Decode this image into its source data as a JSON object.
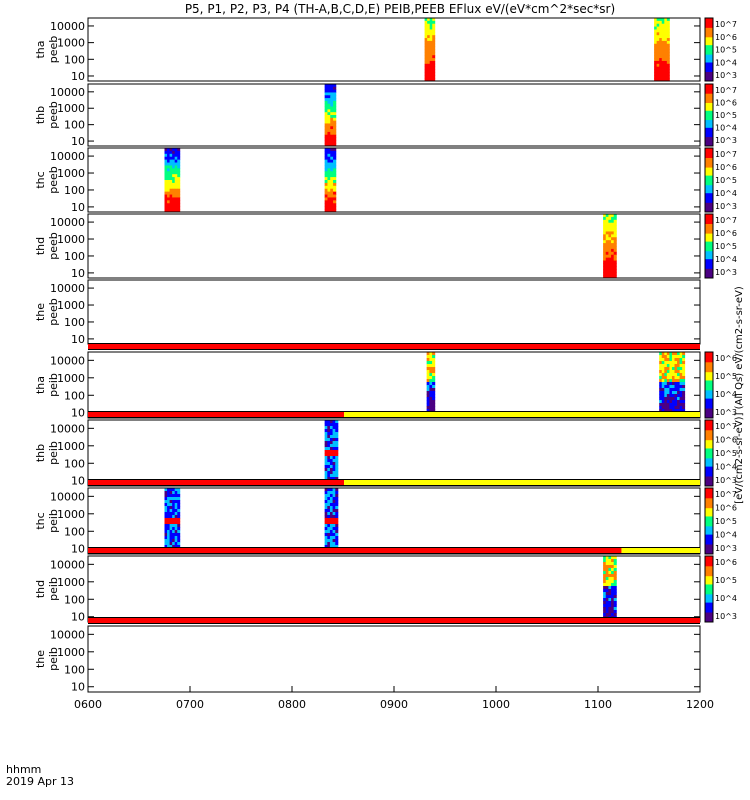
{
  "chart_data": {
    "type": "heatmap",
    "title": "P5, P1, P2, P3, P4 (TH-A,B,C,D,E) PEIB,PEEB EFlux eV/(eV*cm^2*sec*sr)",
    "x_ticks": [
      "0600",
      "0700",
      "0800",
      "0900",
      "1000",
      "1100",
      "1200"
    ],
    "x_range": [
      "0600",
      "1200"
    ],
    "x_label_line1": "hhmm",
    "x_label_line2": "2019 Apr 13",
    "y_ticks": [
      "10",
      "100",
      "1000",
      "10000"
    ],
    "y_scale": "log",
    "y_range": [
      5,
      30000
    ],
    "colorbar_label": "[eV/(cm2-s-sr-eV)] (All Qs) eV/(cm2-s-sr-eV)",
    "colormap": [
      "#4b0082",
      "#0000ff",
      "#00bfff",
      "#00ff80",
      "#ffff00",
      "#ff8000",
      "#ff0000"
    ],
    "panels": [
      {
        "label_line1": "tha",
        "label_line2": "peeb",
        "colorbar_ticks": [
          "10^3",
          "10^4",
          "10^5",
          "10^6",
          "10^7"
        ],
        "blocks": [
          {
            "start": "0930",
            "end": "0940",
            "profile": "electron"
          },
          {
            "start": "1155",
            "end": "1170",
            "profile": "electron"
          }
        ]
      },
      {
        "label_line1": "thb",
        "label_line2": "peeb",
        "colorbar_ticks": [
          "10^3",
          "10^4",
          "10^5",
          "10^6",
          "10^7"
        ],
        "blocks": [
          {
            "start": "0832",
            "end": "0843",
            "profile": "electron_low"
          }
        ]
      },
      {
        "label_line1": "thc",
        "label_line2": "peeb",
        "colorbar_ticks": [
          "10^3",
          "10^4",
          "10^5",
          "10^6",
          "10^7"
        ],
        "blocks": [
          {
            "start": "0675",
            "end": "0690",
            "profile": "electron_low"
          },
          {
            "start": "0832",
            "end": "0843",
            "profile": "electron_low"
          }
        ]
      },
      {
        "label_line1": "thd",
        "label_line2": "peeb",
        "colorbar_ticks": [
          "10^3",
          "10^4",
          "10^5",
          "10^6",
          "10^7"
        ],
        "blocks": [
          {
            "start": "1105",
            "end": "1118",
            "profile": "electron"
          }
        ]
      },
      {
        "label_line1": "the",
        "label_line2": "peeb",
        "colorbar_ticks": [],
        "blocks": []
      },
      {
        "label_line1": "tha",
        "label_line2": "peib",
        "colorbar_ticks": [
          "10^3",
          "10^4",
          "10^5",
          "10^6"
        ],
        "blocks": [
          {
            "start": "0932",
            "end": "0940",
            "profile": "ion"
          },
          {
            "start": "1160",
            "end": "1185",
            "profile": "ion"
          }
        ],
        "status_bar": [
          {
            "start": "0600",
            "end": "1200",
            "color": "#ff0000"
          }
        ]
      },
      {
        "label_line1": "thb",
        "label_line2": "peib",
        "colorbar_ticks": [
          "10^3",
          "10^4",
          "10^5",
          "10^6",
          "10^7"
        ],
        "blocks": [
          {
            "start": "0832",
            "end": "0845",
            "profile": "ion_band"
          }
        ],
        "status_bar": [
          {
            "start": "0600",
            "end": "0851",
            "color": "#ff0000"
          },
          {
            "start": "0851",
            "end": "1200",
            "color": "#ffff00"
          }
        ]
      },
      {
        "label_line1": "thc",
        "label_line2": "peib",
        "colorbar_ticks": [
          "10^3",
          "10^4",
          "10^5",
          "10^6",
          "10^7"
        ],
        "blocks": [
          {
            "start": "0675",
            "end": "0690",
            "profile": "ion_band"
          },
          {
            "start": "0832",
            "end": "0845",
            "profile": "ion_band"
          }
        ],
        "status_bar": [
          {
            "start": "0600",
            "end": "0851",
            "color": "#ff0000"
          },
          {
            "start": "0851",
            "end": "1200",
            "color": "#ffff00"
          }
        ]
      },
      {
        "label_line1": "thd",
        "label_line2": "peib",
        "colorbar_ticks": [
          "10^3",
          "10^4",
          "10^5",
          "10^6"
        ],
        "blocks": [
          {
            "start": "1105",
            "end": "1118",
            "profile": "ion"
          }
        ],
        "status_bar": [
          {
            "start": "0600",
            "end": "1123",
            "color": "#ff0000"
          },
          {
            "start": "1123",
            "end": "1200",
            "color": "#ffff00"
          }
        ]
      },
      {
        "label_line1": "the",
        "label_line2": "peib",
        "colorbar_ticks": [],
        "blocks": [],
        "status_bar": [
          {
            "start": "0600",
            "end": "1200",
            "color": "#ff0000"
          }
        ]
      }
    ]
  }
}
